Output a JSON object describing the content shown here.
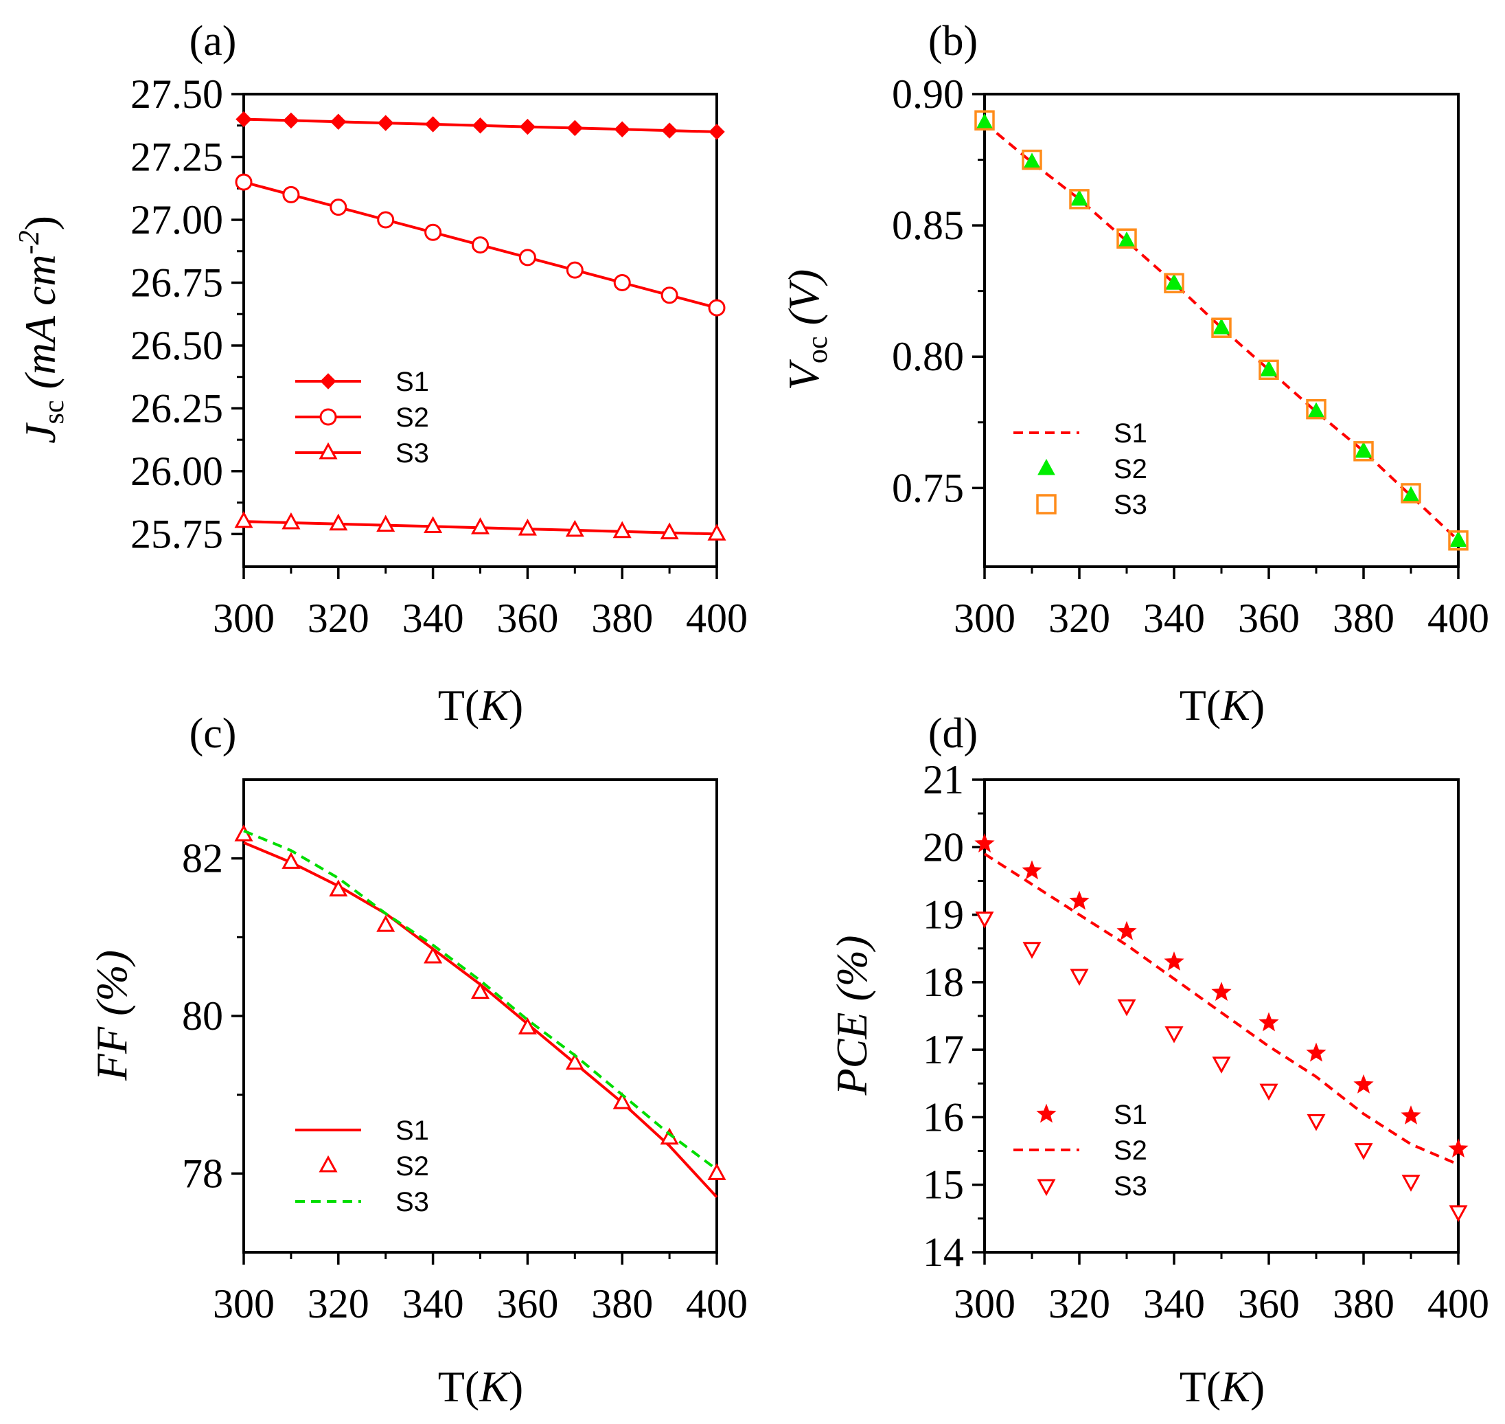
{
  "figure": {
    "background": "#ffffff",
    "axis_color": "#000000"
  },
  "chart_data": [
    {
      "id": "a",
      "panel_label": "(a)",
      "type": "line",
      "xlabel": {
        "main": "T(",
        "italic": "K",
        "tail": ")"
      },
      "ylabel": {
        "main": "J",
        "sub": "sc",
        "rest": " (mA cm",
        "sup": "-2",
        "close": ")"
      },
      "xlim": [
        300,
        400
      ],
      "ylim": [
        25.62,
        27.5
      ],
      "xticks": [
        300,
        320,
        340,
        360,
        380,
        400
      ],
      "xtick_labels": [
        "300",
        "320",
        "340",
        "360",
        "380",
        "400"
      ],
      "yticks": [
        25.75,
        26.0,
        26.25,
        26.5,
        26.75,
        27.0,
        27.25,
        27.5
      ],
      "ytick_labels": [
        "25.75",
        "26.00",
        "26.25",
        "26.50",
        "26.75",
        "27.00",
        "27.25",
        "27.50"
      ],
      "legend": "middle-left",
      "x": [
        300,
        310,
        320,
        330,
        340,
        350,
        360,
        370,
        380,
        390,
        400
      ],
      "series": [
        {
          "name": "S1",
          "values": [
            27.4,
            27.395,
            27.39,
            27.385,
            27.38,
            27.375,
            27.37,
            27.365,
            27.36,
            27.355,
            27.35
          ],
          "color": "#ff0000",
          "line": "solid",
          "marker": "diamond-filled"
        },
        {
          "name": "S2",
          "values": [
            27.15,
            27.1,
            27.05,
            27.0,
            26.95,
            26.9,
            26.85,
            26.8,
            26.75,
            26.7,
            26.65
          ],
          "color": "#ff0000",
          "line": "solid",
          "marker": "circle-open"
        },
        {
          "name": "S3",
          "values": [
            25.8,
            25.795,
            25.79,
            25.785,
            25.78,
            25.775,
            25.77,
            25.765,
            25.76,
            25.755,
            25.75
          ],
          "color": "#ff0000",
          "line": "solid",
          "marker": "triangle-up-open"
        }
      ]
    },
    {
      "id": "b",
      "panel_label": "(b)",
      "type": "line",
      "xlabel": {
        "main": "T(",
        "italic": "K",
        "tail": ")"
      },
      "ylabel": {
        "main": "V",
        "sub": "oc",
        "rest": " (V)"
      },
      "xlim": [
        300,
        400
      ],
      "ylim": [
        0.72,
        0.9
      ],
      "xticks": [
        300,
        320,
        340,
        360,
        380,
        400
      ],
      "xtick_labels": [
        "300",
        "320",
        "340",
        "360",
        "380",
        "400"
      ],
      "yticks": [
        0.75,
        0.8,
        0.85,
        0.9
      ],
      "ytick_labels": [
        "0.75",
        "0.80",
        "0.85",
        "0.90"
      ],
      "legend": "lower-left",
      "x": [
        300,
        310,
        320,
        330,
        340,
        350,
        360,
        370,
        380,
        390,
        400
      ],
      "series": [
        {
          "name": "S1",
          "values": [
            0.889,
            0.874,
            0.86,
            0.844,
            0.828,
            0.811,
            0.795,
            0.779,
            0.764,
            0.747,
            0.73
          ],
          "color": "#ff0000",
          "line": "dashed",
          "marker": "none"
        },
        {
          "name": "S2",
          "values": [
            0.889,
            0.874,
            0.86,
            0.844,
            0.828,
            0.811,
            0.795,
            0.779,
            0.764,
            0.747,
            0.73
          ],
          "color": "#00ee00",
          "line": "none",
          "marker": "triangle-up-filled"
        },
        {
          "name": "S3",
          "values": [
            0.89,
            0.875,
            0.86,
            0.845,
            0.828,
            0.811,
            0.795,
            0.78,
            0.764,
            0.748,
            0.73
          ],
          "color": "#ff8c1a",
          "line": "none",
          "marker": "square-open"
        }
      ]
    },
    {
      "id": "c",
      "panel_label": "(c)",
      "type": "line",
      "xlabel": {
        "main": "T(",
        "italic": "K",
        "tail": ")"
      },
      "ylabel": {
        "main": "FF",
        "rest": " (%)"
      },
      "xlim": [
        300,
        400
      ],
      "ylim": [
        77,
        83
      ],
      "xticks": [
        300,
        320,
        340,
        360,
        380,
        400
      ],
      "xtick_labels": [
        "300",
        "320",
        "340",
        "360",
        "380",
        "400"
      ],
      "yticks": [
        78,
        80,
        82
      ],
      "ytick_labels": [
        "78",
        "80",
        "82"
      ],
      "legend": "lower-left",
      "x": [
        300,
        310,
        320,
        330,
        340,
        350,
        360,
        370,
        380,
        390,
        400
      ],
      "series": [
        {
          "name": "S1",
          "values": [
            82.2,
            81.95,
            81.65,
            81.3,
            80.85,
            80.4,
            79.9,
            79.4,
            78.9,
            78.35,
            77.7
          ],
          "color": "#ff0000",
          "line": "solid",
          "marker": "none"
        },
        {
          "name": "S2",
          "values": [
            82.3,
            81.95,
            81.6,
            81.15,
            80.75,
            80.3,
            79.85,
            79.4,
            78.9,
            78.45,
            78.0
          ],
          "color": "#ff0000",
          "line": "none",
          "marker": "triangle-up-open"
        },
        {
          "name": "S3",
          "values": [
            82.35,
            82.1,
            81.75,
            81.3,
            80.9,
            80.45,
            79.95,
            79.5,
            79.0,
            78.5,
            78.05
          ],
          "color": "#00dd00",
          "line": "dashed",
          "marker": "none"
        }
      ]
    },
    {
      "id": "d",
      "panel_label": "(d)",
      "type": "line",
      "xlabel": {
        "main": "T(",
        "italic": "K",
        "tail": ")"
      },
      "ylabel": {
        "main": "PCE",
        "rest": " (%)"
      },
      "xlim": [
        300,
        400
      ],
      "ylim": [
        14,
        21
      ],
      "xticks": [
        300,
        320,
        340,
        360,
        380,
        400
      ],
      "xtick_labels": [
        "300",
        "320",
        "340",
        "360",
        "380",
        "400"
      ],
      "yticks": [
        14,
        15,
        16,
        17,
        18,
        19,
        20,
        21
      ],
      "ytick_labels": [
        "14",
        "15",
        "16",
        "17",
        "18",
        "19",
        "20",
        "21"
      ],
      "legend": "lower-left",
      "x": [
        300,
        310,
        320,
        330,
        340,
        350,
        360,
        370,
        380,
        390,
        400
      ],
      "series": [
        {
          "name": "S1",
          "values": [
            20.05,
            19.65,
            19.2,
            18.75,
            18.3,
            17.85,
            17.4,
            16.95,
            16.48,
            16.02,
            15.53
          ],
          "color": "#ff0000",
          "line": "none",
          "marker": "star-filled"
        },
        {
          "name": "S2",
          "values": [
            19.9,
            19.45,
            19.0,
            18.55,
            18.05,
            17.55,
            17.05,
            16.6,
            16.05,
            15.6,
            15.3
          ],
          "color": "#ff0000",
          "line": "dashed",
          "marker": "none"
        },
        {
          "name": "S3",
          "values": [
            18.95,
            18.5,
            18.1,
            17.65,
            17.25,
            16.8,
            16.4,
            15.95,
            15.52,
            15.05,
            14.6
          ],
          "color": "#ff0000",
          "line": "none",
          "marker": "triangle-down-open"
        }
      ]
    }
  ]
}
